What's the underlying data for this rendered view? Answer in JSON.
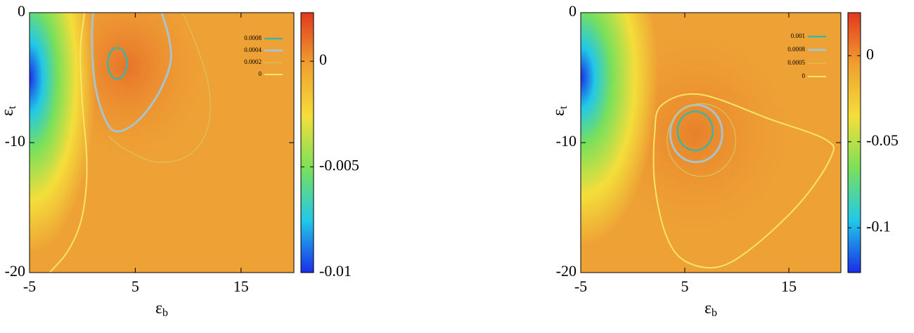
{
  "chart_data": [
    {
      "type": "contour",
      "xlabel": "ε",
      "xlabel_sub": "b",
      "ylabel": "ε",
      "ylabel_sub": "t",
      "xlim": [
        -5,
        20
      ],
      "xticks": [
        -5,
        5,
        15
      ],
      "ylim": [
        -20,
        0
      ],
      "yticks": [
        -20,
        -10,
        0
      ],
      "clim": [
        -0.01,
        0.0023
      ],
      "cticks": [
        -0.01,
        -0.005,
        0
      ],
      "colormap": [
        "#1a2ee8",
        "#22c8e8",
        "#7ae05a",
        "#f4de3a",
        "#f0a030",
        "#e2381e"
      ],
      "series": [
        {
          "name": "0.0008",
          "color": "#3fb4a0",
          "width": 2.5,
          "closed": true,
          "x": [
            4.2,
            4.08,
            3.75,
            3.3,
            2.85,
            2.52,
            2.4,
            2.52,
            2.85,
            3.3,
            3.75,
            4.08
          ],
          "y": [
            -3.9,
            -3.3,
            -2.86,
            -2.7,
            -2.86,
            -3.3,
            -3.9,
            -4.5,
            -4.94,
            -5.1,
            -4.94,
            -4.5
          ]
        },
        {
          "name": "0.0004",
          "color": "#a9c3cc",
          "width": 3,
          "closed": false,
          "x": [
            1,
            0.9,
            1.1,
            1.8,
            3,
            5,
            7,
            8.3,
            8.2,
            7.5
          ],
          "y": [
            0,
            -2,
            -5,
            -7.5,
            -9.1,
            -8.5,
            -6.5,
            -4,
            -2,
            0
          ]
        },
        {
          "name": "0.0002",
          "color": "#d9c45c",
          "width": 1.2,
          "closed": false,
          "x": [
            9.5,
            11,
            12,
            11.8,
            10,
            7,
            4,
            2.5
          ],
          "y": [
            0,
            -3,
            -6,
            -9,
            -11,
            -11.5,
            -10.5,
            -9.5
          ]
        },
        {
          "name": "0",
          "color": "#f8e468",
          "width": 2,
          "closed": false,
          "x": [
            0.2,
            -0.2,
            0,
            0.4,
            0.3,
            -0.3,
            -1.5,
            -3.1
          ],
          "y": [
            0,
            -3,
            -7,
            -11,
            -14,
            -16.5,
            -18.5,
            -20
          ]
        }
      ]
    },
    {
      "type": "contour",
      "xlabel": "ε",
      "xlabel_sub": "b",
      "ylabel": "ε",
      "ylabel_sub": "t",
      "xlim": [
        -5,
        20
      ],
      "xticks": [
        -5,
        5,
        15
      ],
      "ylim": [
        -20,
        0
      ],
      "yticks": [
        -20,
        -10,
        0
      ],
      "clim": [
        -0.126,
        0.025
      ],
      "cticks": [
        -0.1,
        -0.05,
        0
      ],
      "colormap": [
        "#1a2ee8",
        "#22c8e8",
        "#7ae05a",
        "#f4de3a",
        "#f0a030",
        "#e2381e"
      ],
      "series": [
        {
          "name": "0.001",
          "color": "#3fb4a0",
          "width": 2.5,
          "closed": true,
          "x": [
            7.7,
            7.47,
            6.85,
            6,
            5.15,
            4.53,
            4.3,
            4.53,
            5.15,
            6,
            6.85,
            7.47
          ],
          "y": [
            -9.1,
            -8.35,
            -7.8,
            -7.6,
            -7.8,
            -8.35,
            -9.1,
            -9.85,
            -10.4,
            -10.6,
            -10.4,
            -9.85
          ]
        },
        {
          "name": "0.0008",
          "color": "#a9c3cc",
          "width": 3,
          "closed": true,
          "x": [
            8.6,
            8.27,
            7.35,
            6.1,
            4.85,
            3.93,
            3.6,
            3.93,
            4.85,
            6.1,
            7.35,
            8.27
          ],
          "y": [
            -9.3,
            -8.2,
            -7.39,
            -7.1,
            -7.39,
            -8.2,
            -9.3,
            -10.4,
            -11.21,
            -11.5,
            -11.21,
            -10.4
          ]
        },
        {
          "name": "0.0005",
          "color": "#d9c45c",
          "width": 1.2,
          "closed": true,
          "x": [
            9.9,
            9.46,
            8.25,
            6.6,
            4.95,
            3.74,
            3.3,
            3.74,
            4.95,
            6.6,
            8.25,
            9.46
          ],
          "y": [
            -9.8,
            -8.4,
            -7.38,
            -7,
            -7.38,
            -8.4,
            -9.8,
            -11.2,
            -12.22,
            -12.6,
            -12.22,
            -11.2
          ]
        },
        {
          "name": "0",
          "color": "#f8e468",
          "width": 2,
          "closed": true,
          "x": [
            2.8,
            6.5,
            13.2,
            18.6,
            19,
            16,
            11.3,
            8,
            4.8,
            3.1,
            2.1,
            2.1
          ],
          "y": [
            -7.1,
            -6.3,
            -8.2,
            -9.8,
            -11.2,
            -14.7,
            -18.2,
            -19.6,
            -19,
            -16.9,
            -13.1,
            -9.3
          ]
        }
      ]
    }
  ]
}
